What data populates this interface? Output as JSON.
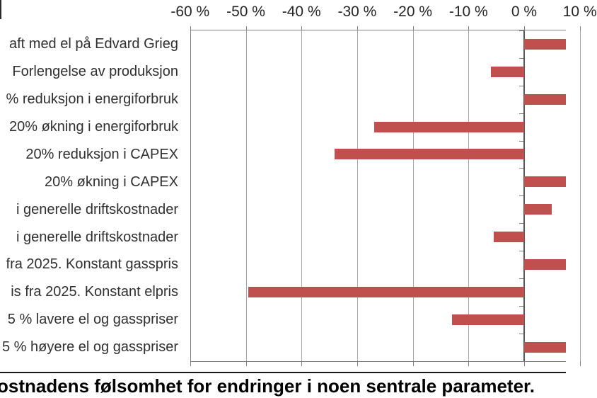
{
  "chart_data": {
    "type": "bar",
    "orientation": "horizontal",
    "unit": "%",
    "title": "",
    "caption": "ostnadens følsomhet for endringer i noen sentrale parameter.",
    "axis_position": "top",
    "axis_ticks": [
      "-60 %",
      "-50 %",
      "-40 %",
      "-30 %",
      "-20 %",
      "-10 %",
      "0 %",
      "10 %"
    ],
    "axis_tick_values": [
      -60,
      -50,
      -40,
      -30,
      -20,
      -10,
      0,
      10
    ],
    "xlim_visible": [
      -60,
      7.5
    ],
    "grid": "vertical-gridlines-on",
    "legend": "none",
    "bar_color": "#c0504d",
    "gridline_color": "#a6a6a6",
    "border_color": "#808080",
    "zero_axis_color": "#595959",
    "bars": [
      {
        "label": "aft med el på Edvard Grieg",
        "value_pct": null,
        "visible_extent_pct": 7.5,
        "truncated_right": true
      },
      {
        "label": "Forlengelse av produksjon",
        "value_pct": -6,
        "visible_extent_pct": null,
        "truncated_right": false
      },
      {
        "label": "% reduksjon i energiforbruk",
        "value_pct": null,
        "visible_extent_pct": 7.5,
        "truncated_right": true
      },
      {
        "label": "20% økning i energiforbruk",
        "value_pct": -27,
        "visible_extent_pct": null,
        "truncated_right": false
      },
      {
        "label": "20% reduksjon i CAPEX",
        "value_pct": -34,
        "visible_extent_pct": null,
        "truncated_right": false
      },
      {
        "label": "20% økning i CAPEX",
        "value_pct": null,
        "visible_extent_pct": 7.5,
        "truncated_right": true
      },
      {
        "label": "i generelle driftskostnader",
        "value_pct": 5,
        "visible_extent_pct": null,
        "truncated_right": false
      },
      {
        "label": "i generelle driftskostnader",
        "value_pct": -5.5,
        "visible_extent_pct": null,
        "truncated_right": false
      },
      {
        "label": "fra 2025. Konstant gasspris",
        "value_pct": null,
        "visible_extent_pct": 7.5,
        "truncated_right": true
      },
      {
        "label": "is fra 2025. Konstant elpris",
        "value_pct": -49.5,
        "visible_extent_pct": null,
        "truncated_right": false
      },
      {
        "label": "5 % lavere el og gasspriser",
        "value_pct": -13,
        "visible_extent_pct": null,
        "truncated_right": false
      },
      {
        "label": "5 % høyere el og gasspriser",
        "value_pct": null,
        "visible_extent_pct": 7.5,
        "truncated_right": true
      }
    ]
  }
}
